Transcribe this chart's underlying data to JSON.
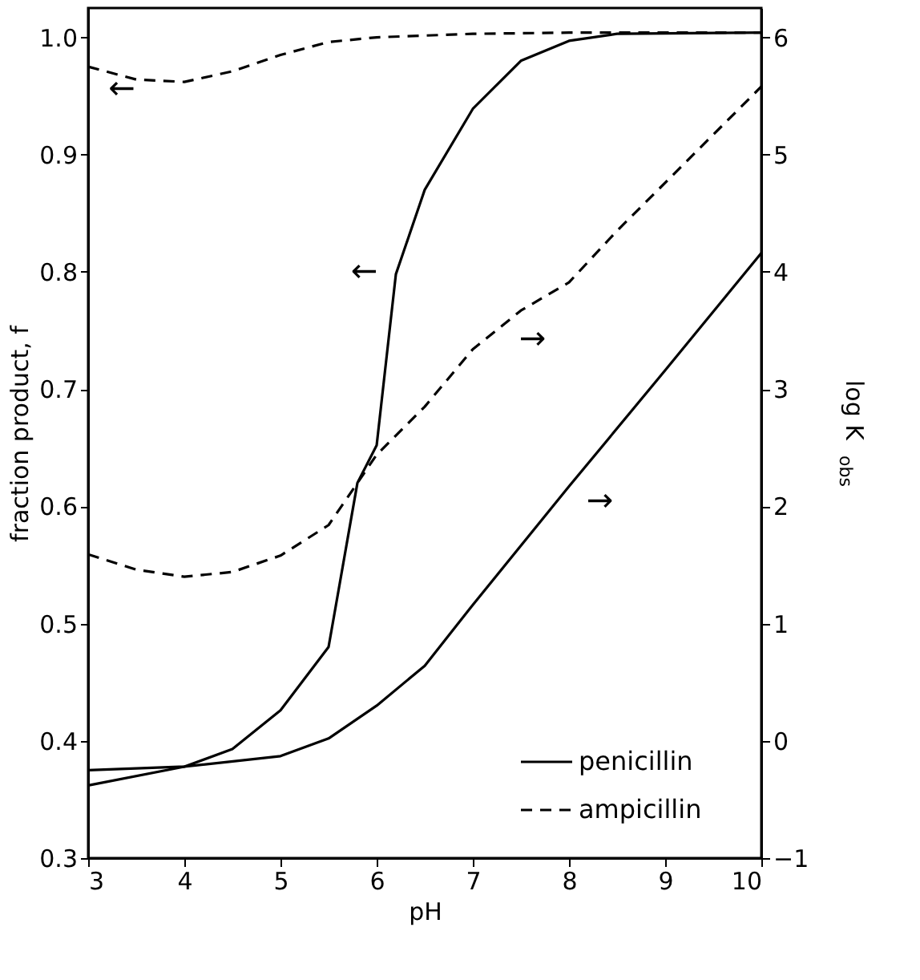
{
  "chart_data": {
    "type": "line",
    "xlabel": "pH",
    "ylabel": "fraction product, f",
    "y2label": "log K$_{obs}$",
    "xlim": [
      3,
      10
    ],
    "xticks": [
      3,
      4,
      5,
      6,
      7,
      8,
      9,
      10
    ],
    "ylim": [
      0.3,
      1.025
    ],
    "yticks": [
      0.3,
      0.4,
      0.5,
      0.6,
      0.7,
      0.8,
      0.9,
      {
        "value": 1,
        "label": "1.0"
      }
    ],
    "y2lim": [
      -1,
      6.25
    ],
    "y2ticks": [
      -1,
      0,
      1,
      2,
      3,
      4,
      5,
      6
    ],
    "grid": false,
    "legend": "bottom right",
    "marker": "none",
    "series": [
      {
        "name": "penicillin",
        "color": "#000000",
        "line_style": "solid",
        "x": [
          3,
          4,
          4.5,
          5,
          5.5,
          5.8,
          6,
          6.2,
          6.5,
          7,
          7.5,
          8,
          8.5,
          10
        ],
        "values": [
          0.362,
          0.378,
          0.393,
          0.426,
          0.48,
          0.62,
          0.652,
          0.798,
          0.87,
          0.939,
          0.98,
          0.997,
          1.003,
          1.004
        ]
      },
      {
        "color": "#000000",
        "line_style": "solid",
        "axis": "y2",
        "x": [
          3,
          4,
          5,
          5.5,
          6,
          6.5,
          7,
          8,
          9,
          10
        ],
        "values": [
          -0.25,
          -0.22,
          -0.13,
          0.02,
          0.3,
          0.64,
          1.16,
          2.17,
          3.16,
          4.16
        ]
      },
      {
        "name": "ampicillin",
        "color": "#000000",
        "line_style": "dashed",
        "x": [
          3,
          3.5,
          4,
          4.5,
          5,
          5.5,
          6,
          7,
          8,
          10
        ],
        "values": [
          0.975,
          0.964,
          0.962,
          0.971,
          0.985,
          0.996,
          1.0,
          1.003,
          1.004,
          1.004
        ]
      },
      {
        "color": "#000000",
        "line_style": "dashed",
        "axis": "y2",
        "x": [
          3,
          3.5,
          4,
          4.5,
          5,
          5.5,
          6,
          6.5,
          7,
          7.5,
          8,
          8.5,
          9,
          9.5,
          10
        ],
        "values": [
          1.59,
          1.46,
          1.4,
          1.44,
          1.58,
          1.84,
          2.44,
          2.85,
          3.34,
          3.67,
          3.91,
          4.35,
          4.76,
          5.17,
          5.58
        ]
      }
    ],
    "annotations": [
      "←",
      "←",
      "→",
      "→"
    ]
  }
}
